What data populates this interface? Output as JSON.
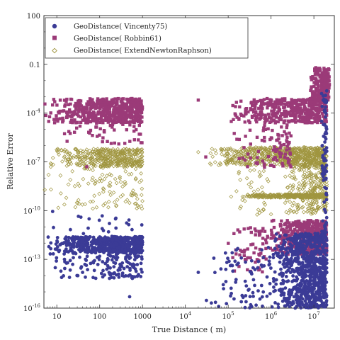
{
  "chart_data": {
    "type": "scatter",
    "title": "",
    "xlabel": "True Distance ( m)",
    "ylabel": "Relative Error",
    "xscale": "log",
    "yscale": "log",
    "xlim": [
      5,
      30000000
    ],
    "ylim": [
      1e-16,
      100
    ],
    "legend_position": "top-left",
    "grid": false,
    "x_ticks": [
      {
        "value": 10,
        "label": "10"
      },
      {
        "value": 100,
        "label": "100"
      },
      {
        "value": 1000,
        "label": "1000"
      },
      {
        "value": 10000,
        "label": "10",
        "exp": "4"
      },
      {
        "value": 100000,
        "label": "10",
        "exp": "5"
      },
      {
        "value": 1000000,
        "label": "10",
        "exp": "6"
      },
      {
        "value": 10000000,
        "label": "10",
        "exp": "7"
      }
    ],
    "y_ticks": [
      {
        "value": 100,
        "label": "100"
      },
      {
        "value": 0.1,
        "label": "0.1"
      },
      {
        "value": 0.0001,
        "label": "10",
        "exp": "-4"
      },
      {
        "value": 1e-07,
        "label": "10",
        "exp": "-7"
      },
      {
        "value": 1e-10,
        "label": "10",
        "exp": "-10"
      },
      {
        "value": 1e-13,
        "label": "10",
        "exp": "-13"
      },
      {
        "value": 1e-16,
        "label": "10",
        "exp": "-16"
      }
    ],
    "series": [
      {
        "name": "GeoDistance( Vincenty75)",
        "marker": "circle",
        "color": "#3b3b96",
        "clusters": [
          {
            "x": [
              5,
              1000
            ],
            "logy": [
              -12.6,
              -11.6
            ],
            "n": 550
          },
          {
            "x": [
              5,
              1000
            ],
            "logy": [
              -14.2,
              -12.6
            ],
            "n": 140
          },
          {
            "x": [
              5,
              1000
            ],
            "logy": [
              -11.6,
              -10.2
            ],
            "n": 22
          },
          {
            "x": [
              30000,
              1000000
            ],
            "logy": [
              -16,
              -12.2
            ],
            "n": 80
          },
          {
            "x": [
              1000000,
              20000000
            ],
            "logy": [
              -16,
              -11.4
            ],
            "n": 820
          },
          {
            "x": [
              15000000,
              20000000
            ],
            "logy": [
              -12,
              -2.6
            ],
            "n": 90
          }
        ],
        "points": [
          [
            8,
            -10.05
          ],
          [
            40,
            -13.8
          ],
          [
            500,
            -15.3
          ],
          [
            20000,
            -13.8
          ],
          [
            60000,
            -15.9
          ],
          [
            350000,
            -15.9
          ]
        ]
      },
      {
        "name": "GeoDistance( Robbin61)",
        "marker": "square",
        "color": "#9b3a78",
        "clusters": [
          {
            "x": [
              5,
              1000
            ],
            "logy": [
              -4.6,
              -3.1
            ],
            "n": 540
          },
          {
            "x": [
              5,
              1000
            ],
            "logy": [
              -5.9,
              -4.6
            ],
            "n": 45
          },
          {
            "x": [
              100000,
              20000000
            ],
            "logy": [
              -4.6,
              -3.1
            ],
            "n": 420
          },
          {
            "x": [
              100000,
              3000000
            ],
            "logy": [
              -7.4,
              -4.6
            ],
            "n": 90
          },
          {
            "x": [
              800000,
              20000000
            ],
            "logy": [
              -12.7,
              -10.6
            ],
            "n": 520
          },
          {
            "x": [
              100000,
              800000
            ],
            "logy": [
              -13.8,
              -11.0
            ],
            "n": 60
          },
          {
            "x": [
              8000000,
              23000000
            ],
            "logy": [
              -3.2,
              -1.2
            ],
            "n": 200
          }
        ],
        "points": [
          [
            20000,
            -3.2
          ],
          [
            50,
            -7.3
          ],
          [
            30000,
            -6.7
          ]
        ]
      },
      {
        "name": "GeoDistance( ExtendNewtonRaphson)",
        "marker": "diamond-open",
        "color": "#a09640",
        "clusters": [
          {
            "x": [
              5,
              1000
            ],
            "logy": [
              -7.3,
              -6.2
            ],
            "n": 420
          },
          {
            "x": [
              5,
              1000
            ],
            "logy": [
              -9.9,
              -7.3
            ],
            "n": 110
          },
          {
            "x": [
              30000,
              20000000
            ],
            "logy": [
              -7.2,
              -6.1
            ],
            "n": 700
          },
          {
            "x": [
              2000000,
              20000000
            ],
            "logy": [
              -10.2,
              -7.2
            ],
            "n": 260
          },
          {
            "x": [
              200000,
              20000000
            ],
            "logy": [
              -9.2,
              -9.0
            ],
            "n": 400
          },
          {
            "x": [
              100000,
              1000000
            ],
            "logy": [
              -10.4,
              -7.5
            ],
            "n": 40
          }
        ],
        "points": [
          [
            20000,
            -6.4
          ],
          [
            60000,
            -7.2
          ]
        ]
      }
    ]
  }
}
